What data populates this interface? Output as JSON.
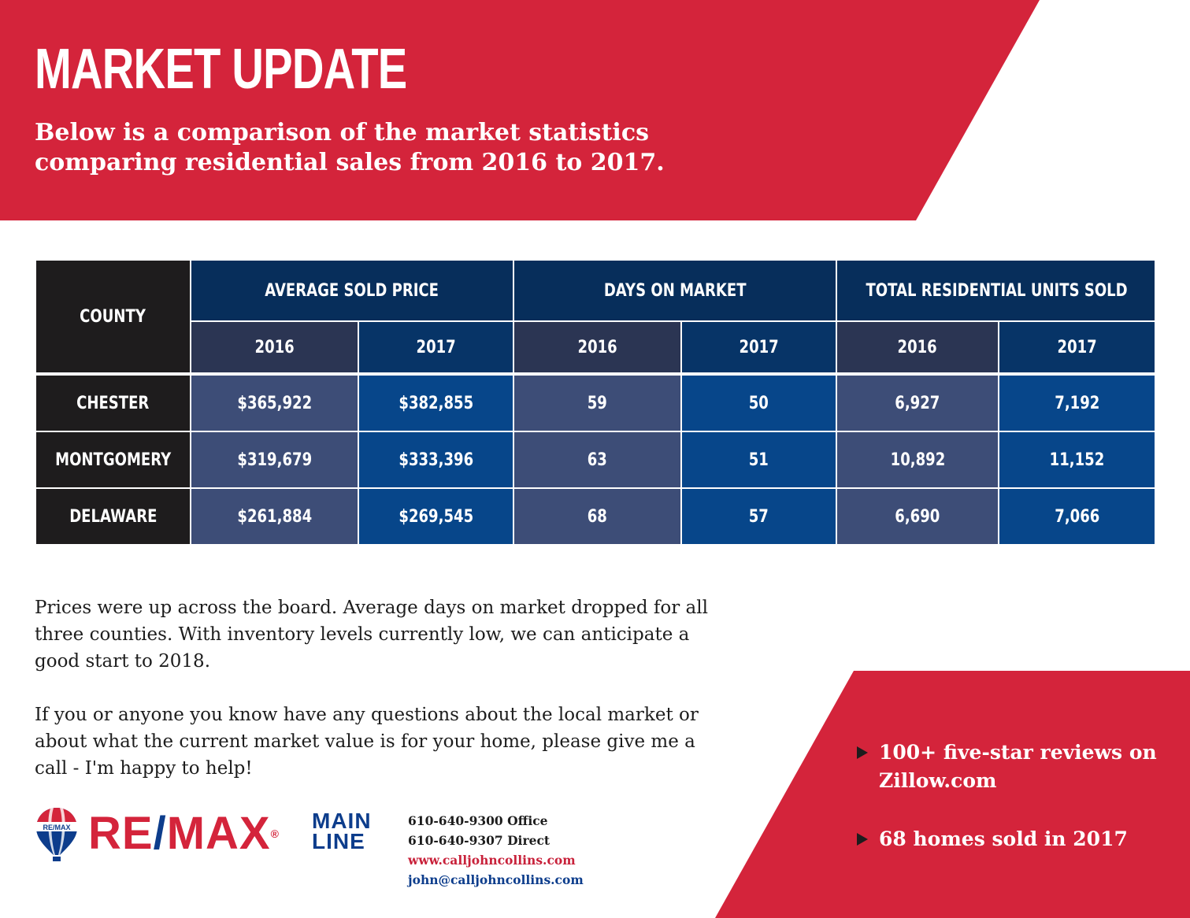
{
  "header": {
    "title": "MARKET UPDATE",
    "subtitle_lines": [
      "Below is a comparison of the market statistics",
      "comparing residential sales from 2016 to 2017."
    ]
  },
  "table": {
    "county_header": "COUNTY",
    "groups": [
      "AVERAGE SOLD PRICE",
      "DAYS ON MARKET",
      "TOTAL RESIDENTIAL UNITS SOLD"
    ],
    "years": [
      "2016",
      "2017"
    ],
    "rows": [
      {
        "county": "CHESTER",
        "values": [
          "$365,922",
          "$382,855",
          "59",
          "50",
          "6,927",
          "7,192"
        ]
      },
      {
        "county": "MONTGOMERY",
        "values": [
          "$319,679",
          "$333,396",
          "63",
          "51",
          "10,892",
          "11,152"
        ]
      },
      {
        "county": "DELAWARE",
        "values": [
          "$261,884",
          "$269,545",
          "68",
          "57",
          "6,690",
          "7,066"
        ]
      }
    ]
  },
  "body": {
    "paragraphs": [
      "Prices were up across the board. Average days on market dropped for all three counties. With inventory levels currently low, we can anticipate a good start to 2018.",
      "If you or anyone you know have any questions about the local market or about what the current market value is for your home, please give me a call - I'm happy to help!"
    ]
  },
  "logo": {
    "balloon_text": "RE/MAX",
    "word_re": "RE",
    "word_slash": "/",
    "word_max": "MAX",
    "registered": "®",
    "main": "MAIN",
    "line": "LINE"
  },
  "contact": {
    "office": "610-640-9300 Office",
    "direct": "610-640-9307 Direct",
    "website": "www.calljohncollins.com",
    "email": "john@calljohncollins.com"
  },
  "callout": {
    "bullets": [
      "100+ five-star reviews on Zillow.com",
      "68 homes sold in 2017"
    ]
  },
  "colors": {
    "brand_red": "#d4243b",
    "brand_blue": "#0d3d8c",
    "county_black": "#1e1c1d",
    "header_navy": "#072e5b",
    "cell_2016": "#3d4d77",
    "cell_2017": "#07468a"
  }
}
